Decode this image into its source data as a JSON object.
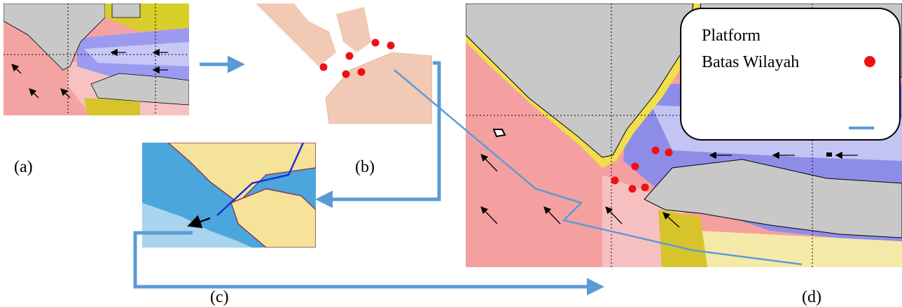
{
  "panels": [
    {
      "label": "(a)"
    },
    {
      "label": "(b)"
    },
    {
      "label": "(c)"
    },
    {
      "label": "(d)"
    }
  ],
  "legend": {
    "items": [
      "Platform",
      "Batas Wilayah"
    ]
  }
}
